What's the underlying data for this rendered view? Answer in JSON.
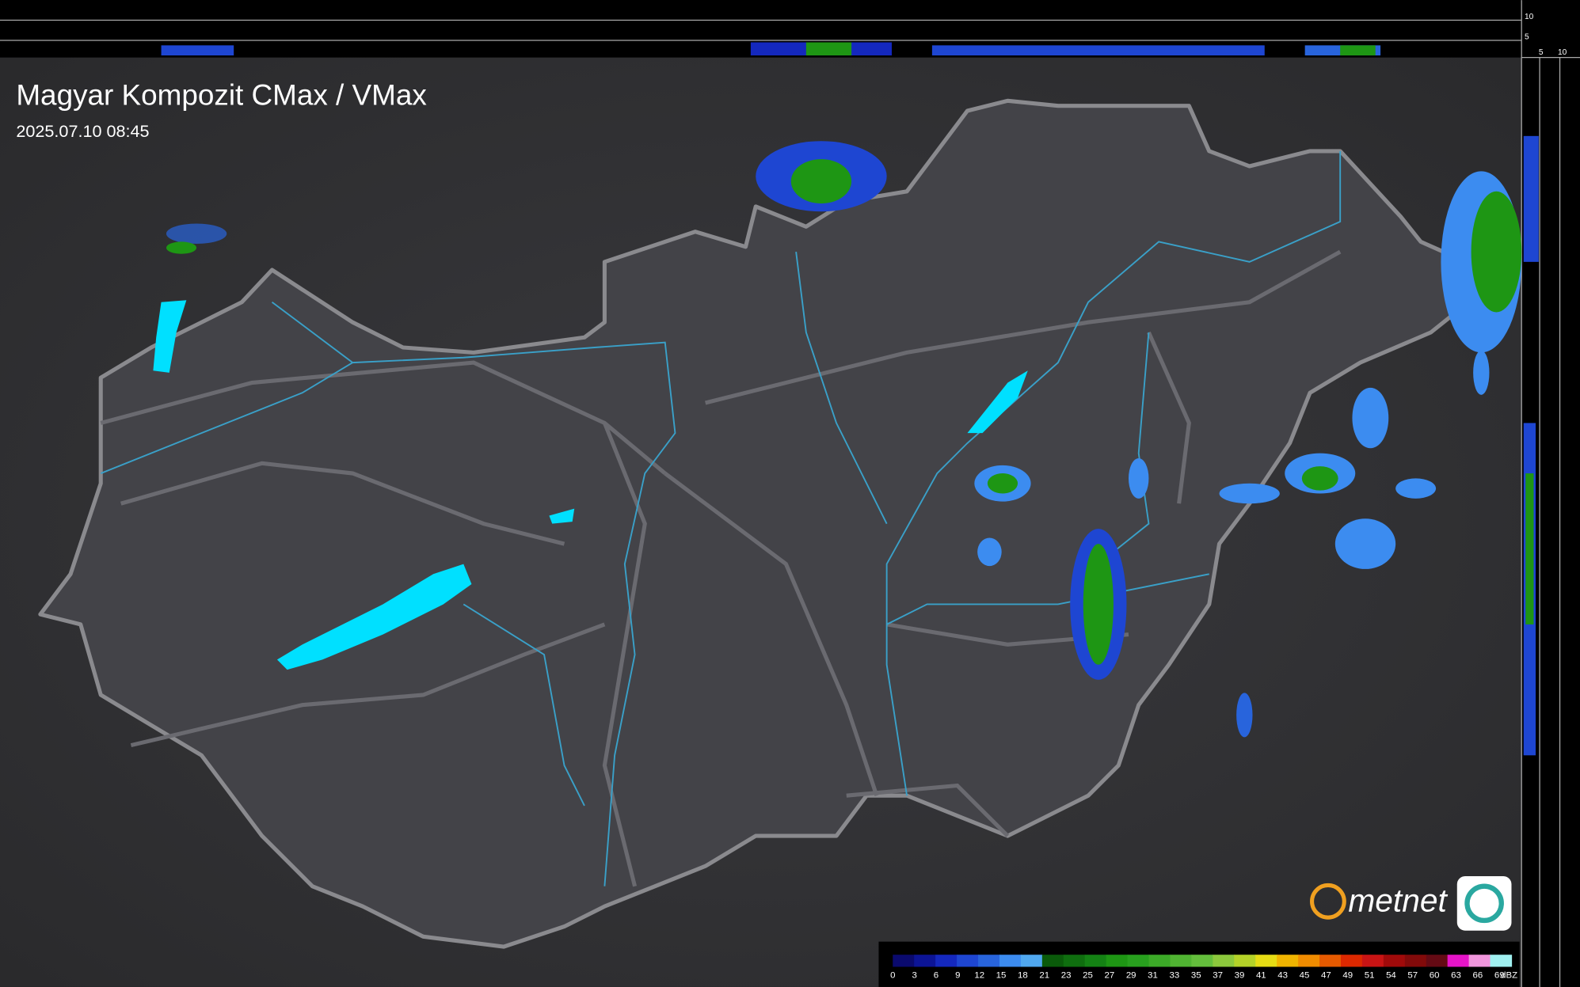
{
  "header": {
    "title": "Magyar Kompozit CMax / VMax",
    "timestamp": "2025.07.10 08:45"
  },
  "side_scale": {
    "top_labels": [
      "10",
      "5"
    ],
    "bottom_labels": [
      "5",
      "10"
    ]
  },
  "brand": "metnet",
  "legend": {
    "labels": [
      "0",
      "3",
      "6",
      "9",
      "12",
      "15",
      "18",
      "21",
      "23",
      "25",
      "27",
      "29",
      "31",
      "33",
      "35",
      "37",
      "39",
      "41",
      "43",
      "45",
      "47",
      "49",
      "51",
      "54",
      "57",
      "60",
      "63",
      "66",
      "69"
    ],
    "unit": "dBZ",
    "colors": [
      "#0a0a6e",
      "#0c1496",
      "#1428be",
      "#1e46d2",
      "#2864dc",
      "#3c8cf0",
      "#50a8f0",
      "#0a5a0a",
      "#0f6e0f",
      "#148214",
      "#1e9614",
      "#28a01e",
      "#3caa28",
      "#50b432",
      "#64be3c",
      "#8cc83c",
      "#b4d228",
      "#e6dc14",
      "#f0b400",
      "#f08c00",
      "#e65a00",
      "#dc2800",
      "#c81414",
      "#a00a0a",
      "#820a0a",
      "#640a14",
      "#e614c8",
      "#f096dc",
      "#a0f0f0"
    ]
  }
}
